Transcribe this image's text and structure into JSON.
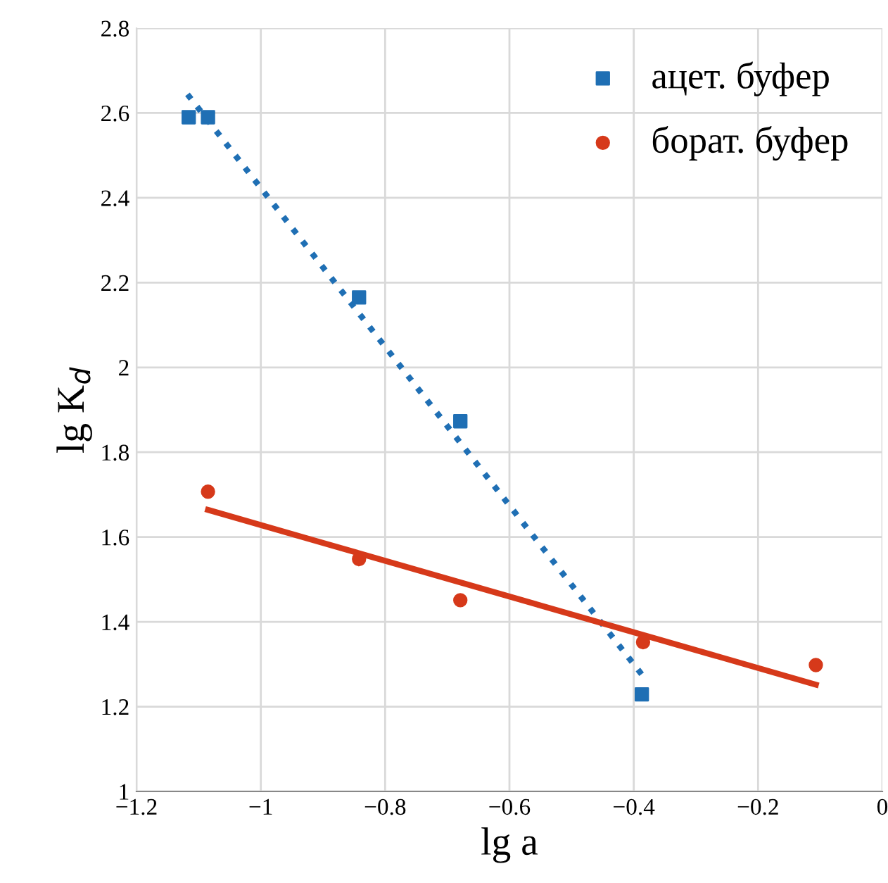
{
  "chart_data": {
    "type": "scatter",
    "xlabel": "lg a",
    "ylabel": "lg K$_{d}$",
    "series": [
      {
        "name": "ацет. буфер",
        "color": "#1f6fb4",
        "marker": "square",
        "x": [
          -1.116,
          -1.085,
          -0.842,
          -0.679,
          -0.387
        ],
        "values": [
          2.59,
          2.59,
          2.165,
          1.873,
          1.229
        ]
      },
      {
        "name": "борат. буфер",
        "color": "#d6391a",
        "marker": "circle",
        "x": [
          -1.085,
          -0.842,
          -0.679,
          -0.385,
          -0.107
        ],
        "values": [
          1.707,
          1.548,
          1.451,
          1.352,
          1.298
        ]
      },
      {
        "type": "line",
        "color": "#1f6fb4",
        "line_style": "dotted",
        "x": [
          -1.118,
          -0.385
        ],
        "values": [
          2.644,
          1.272
        ]
      },
      {
        "type": "line",
        "color": "#d6391a",
        "line_style": "solid",
        "x": [
          -1.085,
          -0.107
        ],
        "values": [
          1.664,
          1.252
        ]
      }
    ],
    "xlim": [
      -1.2,
      0
    ],
    "xticks": [
      -1.2,
      -1,
      -0.8,
      -0.6,
      -0.4,
      -0.2,
      0
    ],
    "ylim": [
      1,
      2.8
    ],
    "yticks": [
      1,
      1.2,
      1.4,
      1.6,
      1.8,
      2,
      2.2,
      2.4,
      2.6,
      2.8
    ],
    "grid": true,
    "legend": "top right"
  }
}
